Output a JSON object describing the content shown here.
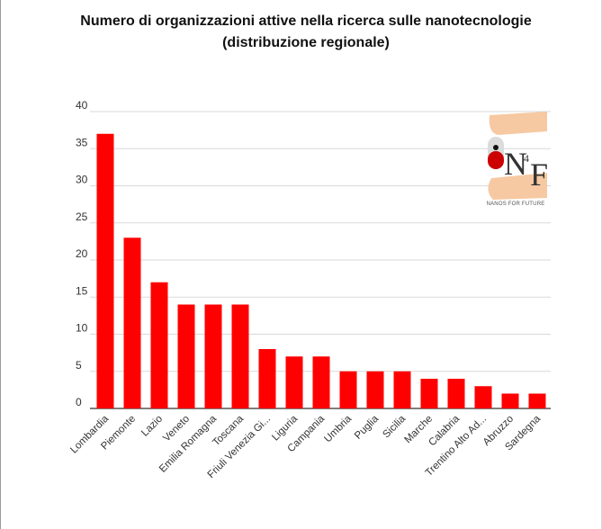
{
  "chart_data": {
    "type": "bar",
    "title_line1": "Numero di organizzazioni attive nella ricerca sulle nanotecnologie",
    "title_line2": "(distribuzione regionale)",
    "categories": [
      "Lombardia",
      "Piemonte",
      "Lazio",
      "Veneto",
      "Emilia Romagna",
      "Toscana",
      "Friuli Venezia Gi...",
      "Liguria",
      "Campania",
      "Umbria",
      "Puglia",
      "Sicilia",
      "Marche",
      "Calabria",
      "Trentino Alto Ad...",
      "Abruzzo",
      "Sardegna"
    ],
    "values": [
      37,
      23,
      17,
      14,
      14,
      14,
      8,
      7,
      7,
      5,
      5,
      5,
      4,
      4,
      3,
      2,
      2
    ],
    "ylim": [
      0,
      40
    ],
    "yticks": [
      0,
      5,
      10,
      15,
      20,
      25,
      30,
      35,
      40
    ],
    "grid": true,
    "bar_color": "#ff0000",
    "xlabel": "",
    "ylabel": ""
  },
  "logo": {
    "letters": "N4F",
    "caption": "NANOS FOR FUTURE"
  }
}
